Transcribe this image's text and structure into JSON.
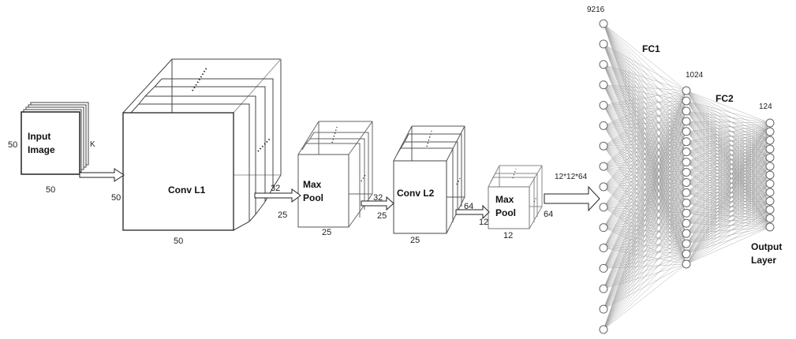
{
  "input": {
    "title_line1": "Input",
    "title_line2": "Image",
    "height": "50",
    "width": "50",
    "depth": "K"
  },
  "conv1": {
    "title": "Conv L1",
    "height": "50",
    "width": "50",
    "depth": "32"
  },
  "pool1": {
    "title_line1": "Max",
    "title_line2": "Pool",
    "height": "25",
    "width": "25",
    "depth": "32"
  },
  "conv2": {
    "title": "Conv L2",
    "height": "25",
    "width": "25",
    "depth": "64"
  },
  "pool2": {
    "title_line1": "Max",
    "title_line2": "Pool",
    "height": "12",
    "width": "12",
    "depth": "64"
  },
  "flatten": {
    "label": "12*12*64"
  },
  "fc": {
    "input_count": "9216",
    "hidden_count": "1024",
    "output_count": "124",
    "fc1_label": "FC1",
    "fc2_label": "FC2",
    "output_line1": "Output",
    "output_line2": "Layer"
  },
  "colors": {
    "line": "#333333",
    "neuron": "#666666",
    "edge": "#9a9a9a"
  }
}
